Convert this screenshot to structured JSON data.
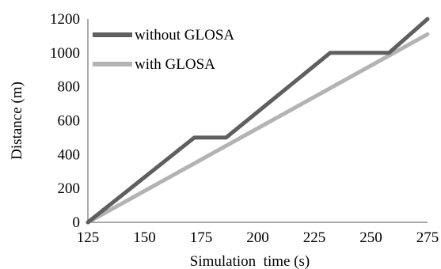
{
  "chart_data": {
    "type": "line",
    "xlabel": "Simulation  time (s)",
    "ylabel": "Distance (m)",
    "xlim": [
      125,
      275
    ],
    "ylim": [
      0,
      1200
    ],
    "xticks": [
      125,
      150,
      175,
      200,
      225,
      250,
      275
    ],
    "yticks": [
      0,
      200,
      400,
      600,
      800,
      1000,
      1200
    ],
    "grid": false,
    "legend_position": "top-left",
    "series": [
      {
        "name": "without GLOSA",
        "color": "#5f5f5f",
        "x": [
          125,
          172,
          186,
          232,
          258,
          275
        ],
        "y": [
          0,
          500,
          500,
          1000,
          1000,
          1200
        ]
      },
      {
        "name": "with GLOSA",
        "color": "#b3b3b3",
        "x": [
          125,
          275
        ],
        "y": [
          0,
          1110
        ]
      }
    ]
  }
}
